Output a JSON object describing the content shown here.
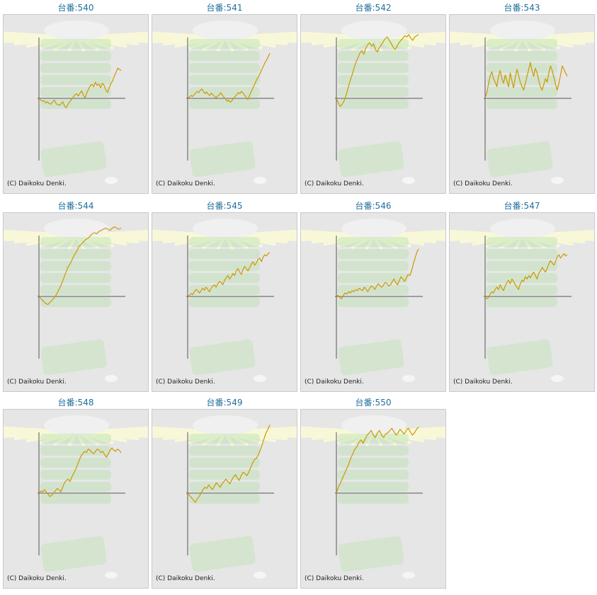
{
  "colors": {
    "line": "#cc9900",
    "label": "#1f6f9c",
    "panel_bg": "#e6e6e6",
    "axis": "#555555",
    "art": "#b5e0a8"
  },
  "copyright": "(C) Daikoku Denki.",
  "chart_data": [
    {
      "type": "line",
      "title": "台番:540",
      "values": [
        0,
        -3,
        -5,
        -4,
        -8,
        -6,
        -9,
        -10,
        -6,
        -3,
        -9,
        -11,
        -12,
        -9,
        -6,
        -14,
        -16,
        -10,
        -6,
        -2,
        2,
        6,
        8,
        4,
        9,
        13,
        5,
        1,
        10,
        16,
        22,
        24,
        20,
        28,
        22,
        25,
        18,
        26,
        23,
        15,
        10,
        18,
        25,
        30,
        38,
        45,
        52,
        50,
        48
      ]
    },
    {
      "type": "line",
      "title": "台番:541",
      "values": [
        0,
        2,
        5,
        3,
        6,
        9,
        12,
        10,
        14,
        16,
        12,
        8,
        11,
        7,
        5,
        9,
        6,
        3,
        1,
        4,
        6,
        10,
        5,
        2,
        -1,
        -5,
        -3,
        -7,
        -4,
        0,
        3,
        6,
        10,
        8,
        12,
        9,
        6,
        2,
        -2,
        4,
        10,
        16,
        22,
        28,
        34,
        38,
        44,
        50,
        56,
        62,
        66,
        72,
        78
      ]
    },
    {
      "type": "line",
      "title": "台番:542",
      "values": [
        0,
        -8,
        -14,
        -10,
        -4,
        6,
        18,
        30,
        40,
        52,
        62,
        70,
        78,
        82,
        76,
        86,
        92,
        96,
        90,
        94,
        84,
        80,
        88,
        92,
        98,
        103,
        106,
        100,
        95,
        88,
        84,
        90,
        96,
        100,
        104,
        108,
        106,
        110,
        104,
        100,
        106,
        108,
        110
      ]
    },
    {
      "type": "line",
      "title": "台番:543",
      "values": [
        0,
        10,
        24,
        38,
        46,
        34,
        28,
        20,
        38,
        48,
        34,
        26,
        40,
        30,
        20,
        44,
        30,
        18,
        36,
        50,
        40,
        28,
        20,
        14,
        26,
        38,
        50,
        62,
        48,
        38,
        52,
        44,
        30,
        20,
        14,
        24,
        34,
        28,
        44,
        56,
        48,
        36,
        24,
        14,
        26,
        40,
        56,
        50,
        44,
        38
      ]
    },
    {
      "type": "line",
      "title": "台番:544",
      "values": [
        0,
        -4,
        -8,
        -12,
        -14,
        -10,
        -6,
        -2,
        4,
        12,
        20,
        30,
        40,
        50,
        56,
        64,
        72,
        78,
        86,
        90,
        94,
        98,
        100,
        104,
        108,
        110,
        108,
        112,
        114,
        116,
        118,
        116,
        114,
        118,
        120,
        118,
        116,
        118
      ]
    },
    {
      "type": "line",
      "title": "台番:545",
      "values": [
        0,
        2,
        5,
        3,
        8,
        12,
        10,
        6,
        10,
        14,
        11,
        16,
        12,
        8,
        14,
        18,
        20,
        16,
        22,
        26,
        24,
        20,
        28,
        32,
        36,
        30,
        34,
        40,
        36,
        44,
        48,
        42,
        38,
        46,
        52,
        48,
        44,
        50,
        56,
        60,
        54,
        58,
        64,
        66,
        60,
        68,
        72,
        70,
        74,
        76
      ]
    },
    {
      "type": "line",
      "title": "台番:546",
      "values": [
        0,
        2,
        -2,
        -4,
        2,
        6,
        4,
        8,
        6,
        10,
        8,
        12,
        10,
        14,
        12,
        10,
        16,
        12,
        8,
        14,
        18,
        16,
        12,
        18,
        22,
        18,
        16,
        20,
        24,
        22,
        18,
        20,
        26,
        30,
        24,
        20,
        28,
        34,
        30,
        26,
        32,
        38,
        36,
        44,
        56,
        66,
        76,
        82
      ]
    },
    {
      "type": "line",
      "title": "台番:547",
      "values": [
        0,
        -4,
        -2,
        4,
        8,
        6,
        12,
        16,
        12,
        20,
        14,
        10,
        18,
        24,
        28,
        22,
        30,
        26,
        20,
        16,
        12,
        22,
        28,
        26,
        34,
        30,
        36,
        32,
        38,
        42,
        36,
        30,
        40,
        44,
        50,
        46,
        42,
        48,
        56,
        62,
        58,
        54,
        60,
        68,
        72,
        66,
        70,
        74,
        70,
        72
      ]
    },
    {
      "type": "line",
      "title": "台番:548",
      "values": [
        0,
        4,
        2,
        6,
        2,
        -2,
        -6,
        -4,
        0,
        4,
        8,
        6,
        2,
        10,
        18,
        22,
        24,
        20,
        28,
        34,
        40,
        48,
        56,
        64,
        68,
        72,
        70,
        76,
        74,
        70,
        68,
        72,
        76,
        74,
        70,
        72,
        66,
        62,
        68,
        74,
        78,
        74,
        72,
        76,
        74,
        70
      ]
    },
    {
      "type": "line",
      "title": "台番:549",
      "values": [
        0,
        -4,
        -8,
        -12,
        -16,
        -10,
        -6,
        0,
        6,
        10,
        8,
        14,
        10,
        6,
        12,
        18,
        14,
        10,
        16,
        20,
        24,
        20,
        16,
        22,
        28,
        32,
        26,
        22,
        30,
        36,
        34,
        30,
        36,
        44,
        52,
        58,
        60,
        66,
        74,
        84,
        94,
        104,
        110,
        118
      ]
    },
    {
      "type": "line",
      "title": "台番:550",
      "values": [
        0,
        10,
        18,
        26,
        34,
        42,
        50,
        60,
        68,
        76,
        80,
        88,
        92,
        86,
        94,
        100,
        104,
        108,
        100,
        96,
        104,
        108,
        100,
        96,
        102,
        104,
        108,
        112,
        106,
        100,
        104,
        110,
        106,
        102,
        108,
        112,
        106,
        100,
        104,
        110,
        114
      ]
    }
  ]
}
